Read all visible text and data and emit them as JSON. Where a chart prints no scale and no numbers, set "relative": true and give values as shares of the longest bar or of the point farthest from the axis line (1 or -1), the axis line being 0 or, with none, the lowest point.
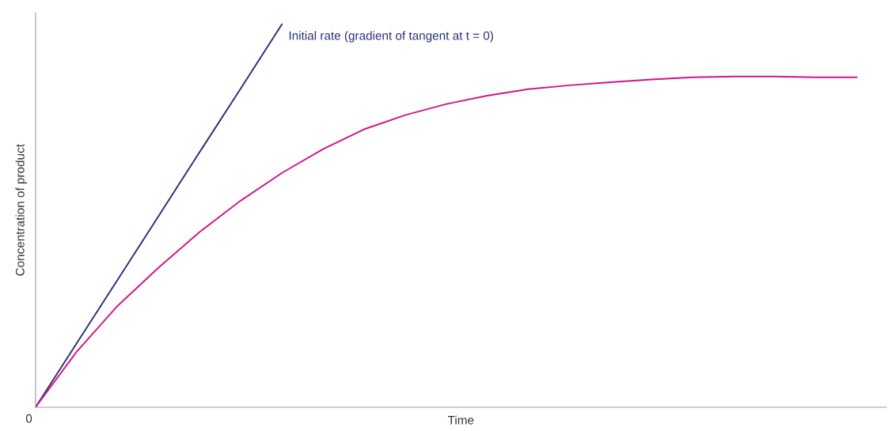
{
  "chart_data": {
    "type": "line",
    "relative": true,
    "xlabel": "Time",
    "ylabel": "Concentration of product",
    "categories": [
      null,
      null,
      null,
      null,
      null,
      null,
      null,
      null,
      null,
      null,
      null,
      null,
      null,
      null,
      null,
      null,
      null,
      null,
      null,
      null,
      null
    ],
    "series": [
      {
        "color": "#2b2f7a",
        "values": [
          0,
          0.167,
          0.333,
          0.5,
          0.667,
          0.833,
          1,
          null,
          null,
          null,
          null,
          null,
          null,
          null,
          null,
          null,
          null,
          null,
          null,
          null,
          null
        ]
      },
      {
        "color": "#d0158a",
        "values": [
          0,
          0.145,
          0.265,
          0.365,
          0.458,
          0.54,
          0.612,
          0.674,
          0.726,
          0.763,
          0.792,
          0.814,
          0.831,
          0.841,
          0.849,
          0.856,
          0.862,
          0.864,
          0.864,
          0.862,
          0.862
        ]
      }
    ],
    "annotations": [
      "Initial rate (gradient of tangent at t = 0)",
      "0"
    ],
    "grid": false,
    "legend": false,
    "marker": "none",
    "line_style": "solid"
  }
}
